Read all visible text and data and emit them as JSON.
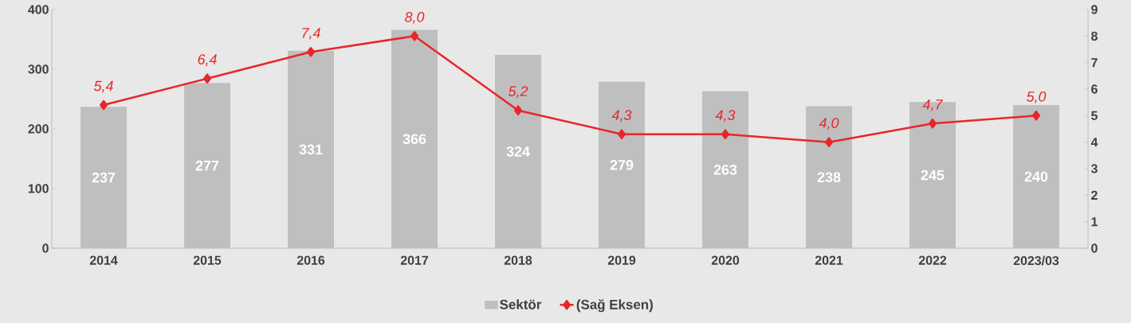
{
  "chart_data": {
    "type": "bar",
    "categories": [
      "2014",
      "2015",
      "2016",
      "2017",
      "2018",
      "2019",
      "2020",
      "2021",
      "2022",
      "2023/03"
    ],
    "series": [
      {
        "name": "Sektör",
        "color": "#bfbfbf",
        "values": [
          237,
          277,
          331,
          366,
          324,
          279,
          263,
          238,
          245,
          240
        ],
        "value_labels": [
          "237",
          "277",
          "331",
          "366",
          "324",
          "279",
          "263",
          "238",
          "245",
          "240"
        ]
      },
      {
        "name": "(Sağ Eksen)",
        "type": "line",
        "axis": "y2",
        "color": "#e8262b",
        "marker": "diamond",
        "line_style": "solid",
        "values": [
          5.4,
          6.4,
          7.4,
          8.0,
          5.2,
          4.3,
          4.3,
          4.0,
          4.7,
          5.0
        ],
        "value_labels": [
          "5,4",
          "6,4",
          "7,4",
          "8,0",
          "5,2",
          "4,3",
          "4,3",
          "4,0",
          "4,7",
          "5,0"
        ]
      }
    ],
    "ylim": [
      0,
      400
    ],
    "yticks": [
      0,
      100,
      200,
      300,
      400
    ],
    "y2lim": [
      0,
      9
    ],
    "y2ticks": [
      0,
      1,
      2,
      3,
      4,
      5,
      6,
      7,
      8,
      9
    ],
    "legend": "bottom",
    "grid": false
  }
}
